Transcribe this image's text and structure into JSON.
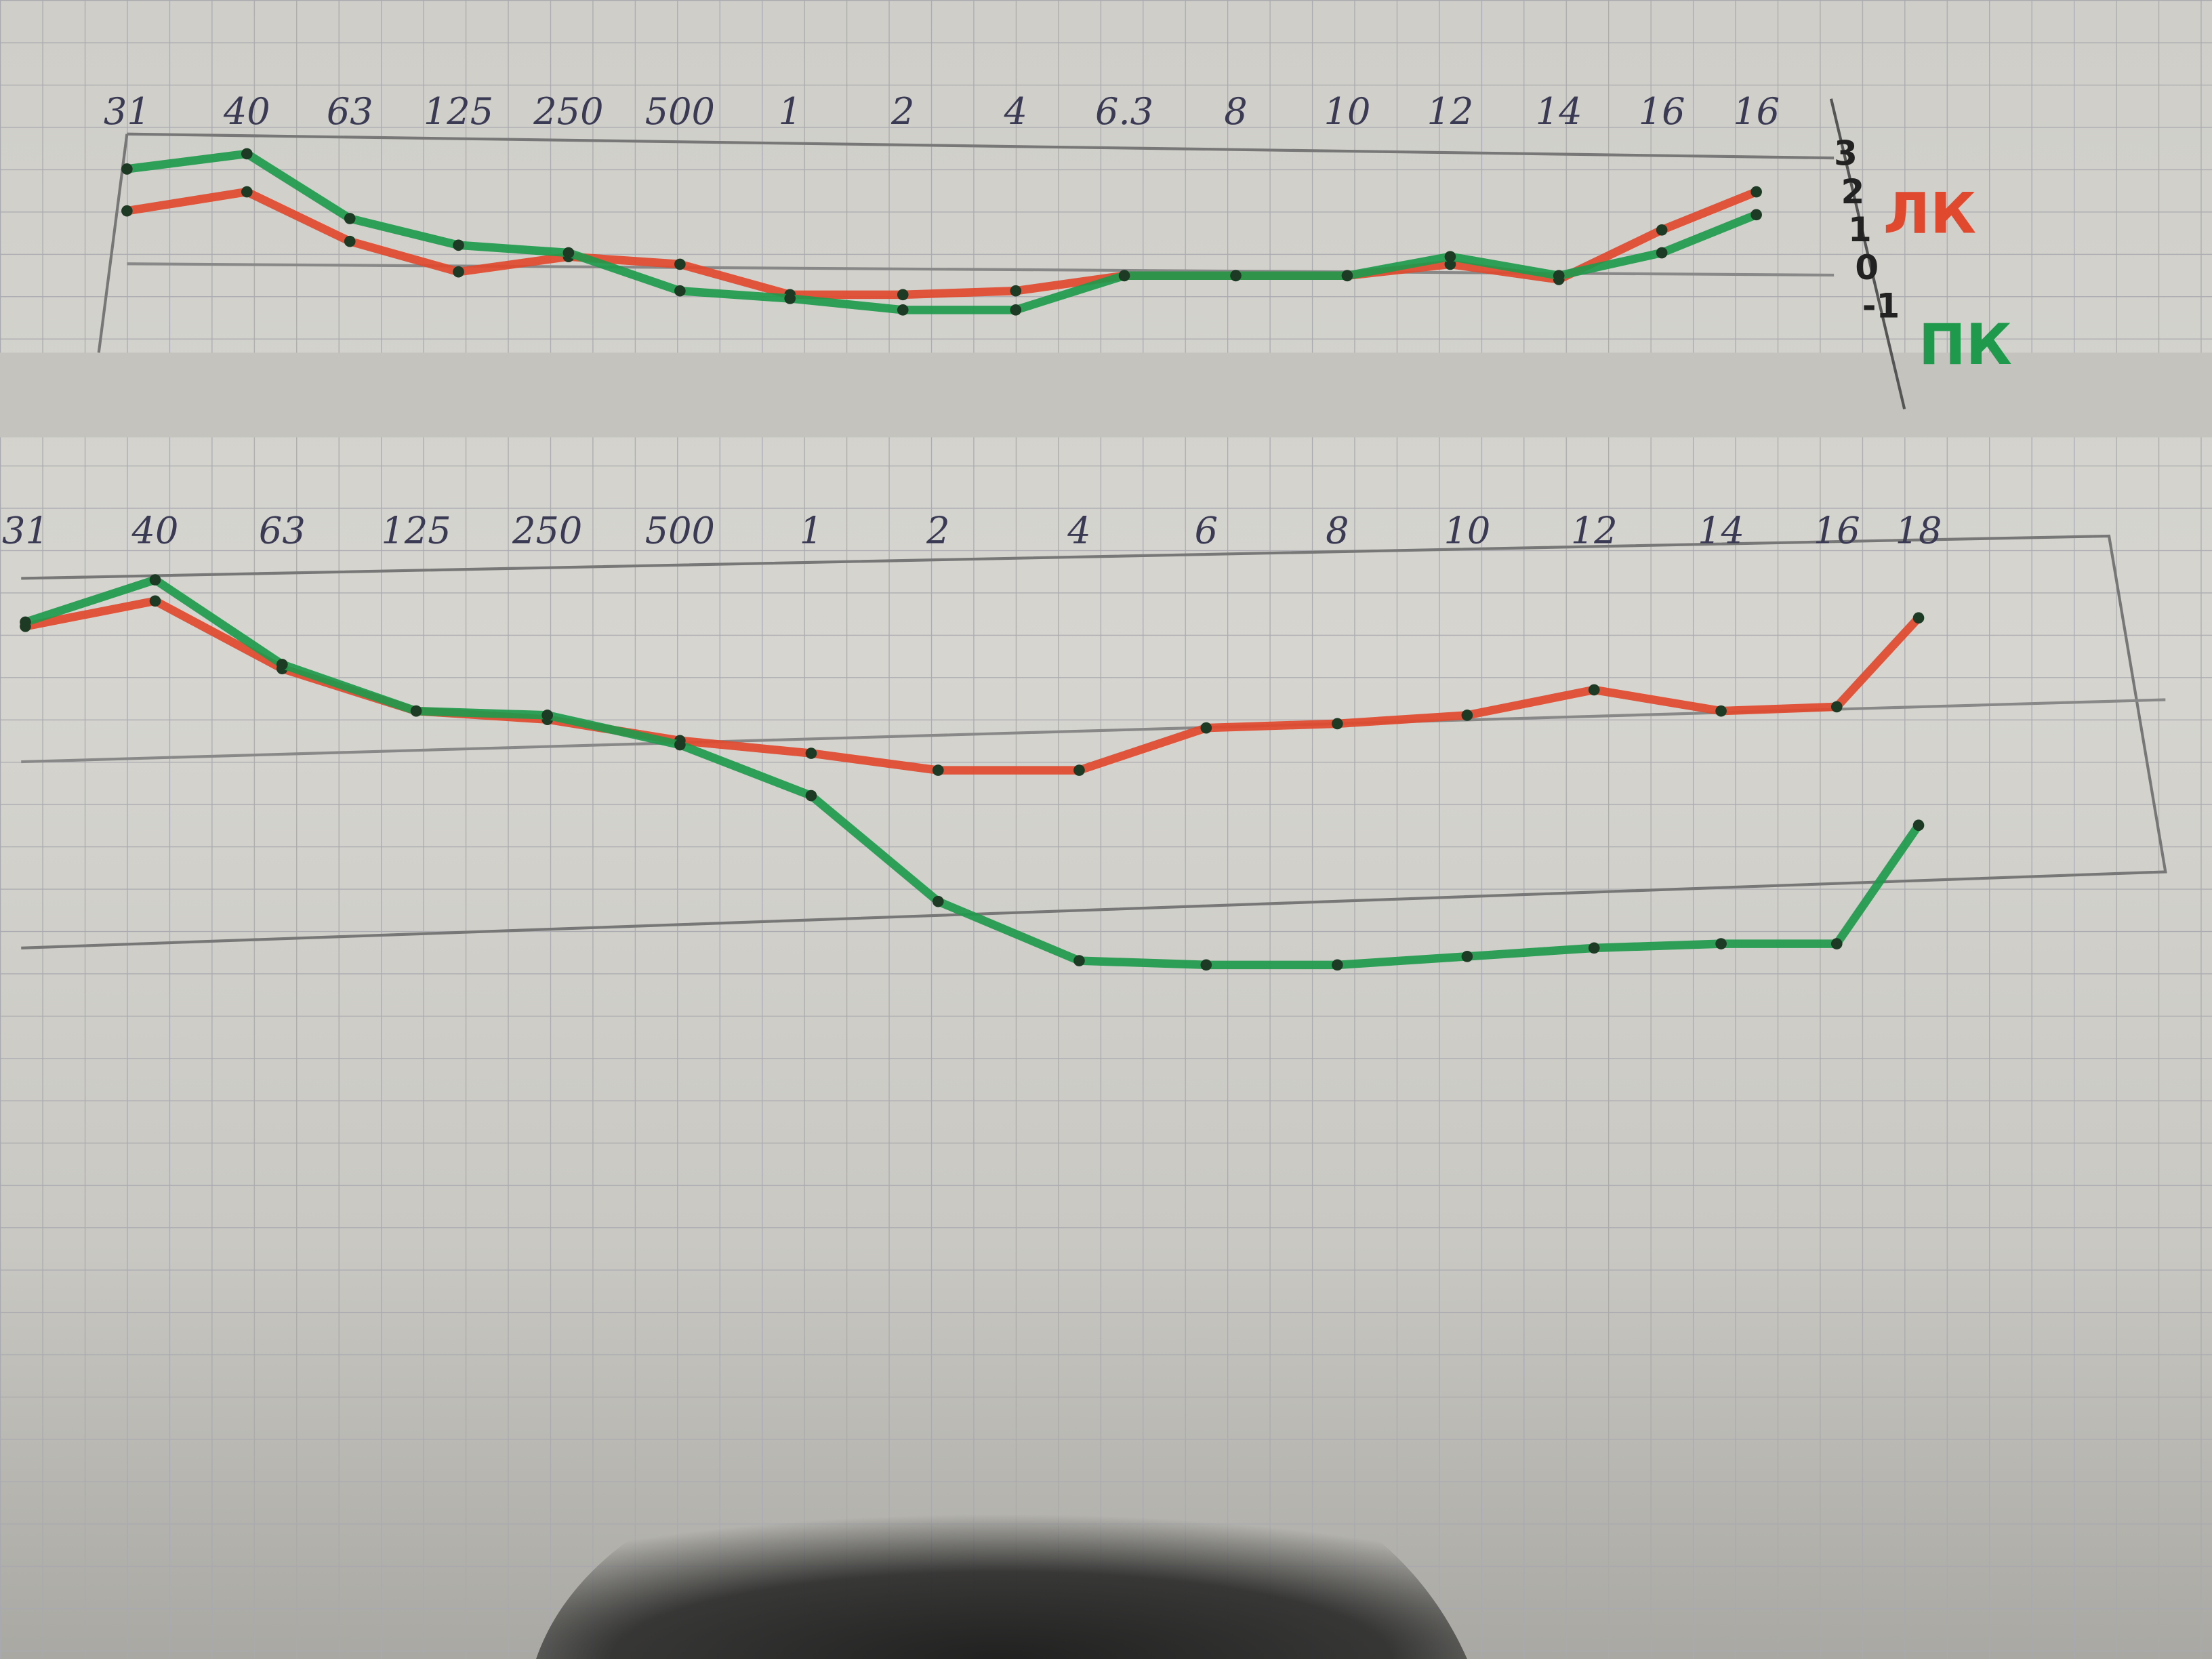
{
  "colors": {
    "paper": "#d3d2cc",
    "grid": "#a9a9b0",
    "red_series": "#e0492e",
    "green_series": "#1f9a4c",
    "ink": "#2b2b3a"
  },
  "chart_data": [
    {
      "type": "line",
      "categories": [
        "31",
        "40",
        "63",
        "125",
        "250",
        "500",
        "1",
        "2",
        "4",
        "6.3",
        "8",
        "10",
        "12",
        "14",
        "16",
        "16"
      ],
      "yticks": [
        "3",
        "2",
        "1",
        "0",
        "-1"
      ],
      "ylim": [
        -1,
        3
      ],
      "grid": true,
      "legend_placement": "right",
      "series": [
        {
          "name": "ЛК",
          "color": "#e0492e",
          "values": [
            1.5,
            2.0,
            0.7,
            -0.1,
            0.3,
            0.1,
            -0.7,
            -0.7,
            -0.6,
            -0.2,
            -0.2,
            -0.2,
            0.1,
            -0.3,
            1.0,
            2.0
          ]
        },
        {
          "name": "ПК",
          "color": "#1f9a4c",
          "values": [
            2.6,
            3.0,
            1.3,
            0.6,
            0.4,
            -0.6,
            -0.8,
            -1.1,
            -1.1,
            -0.2,
            -0.2,
            -0.2,
            0.3,
            -0.2,
            0.4,
            1.4
          ]
        }
      ]
    },
    {
      "type": "line",
      "categories": [
        "31",
        "40",
        "63",
        "125",
        "250",
        "500",
        "1",
        "2",
        "4",
        "6",
        "8",
        "10",
        "12",
        "14",
        "16",
        "18"
      ],
      "grid": true,
      "series": [
        {
          "color": "#e0492e",
          "values": [
            2.7,
            3.3,
            1.7,
            0.7,
            0.5,
            0.0,
            -0.3,
            -0.7,
            -0.7,
            0.3,
            0.4,
            0.6,
            1.2,
            0.7,
            0.8,
            2.9
          ]
        },
        {
          "color": "#1f9a4c",
          "values": [
            2.8,
            3.8,
            1.8,
            0.7,
            0.6,
            -0.1,
            -1.3,
            -3.8,
            -5.2,
            -5.3,
            -5.3,
            -5.1,
            -4.9,
            -4.8,
            -4.8,
            -2.0
          ]
        }
      ]
    }
  ]
}
